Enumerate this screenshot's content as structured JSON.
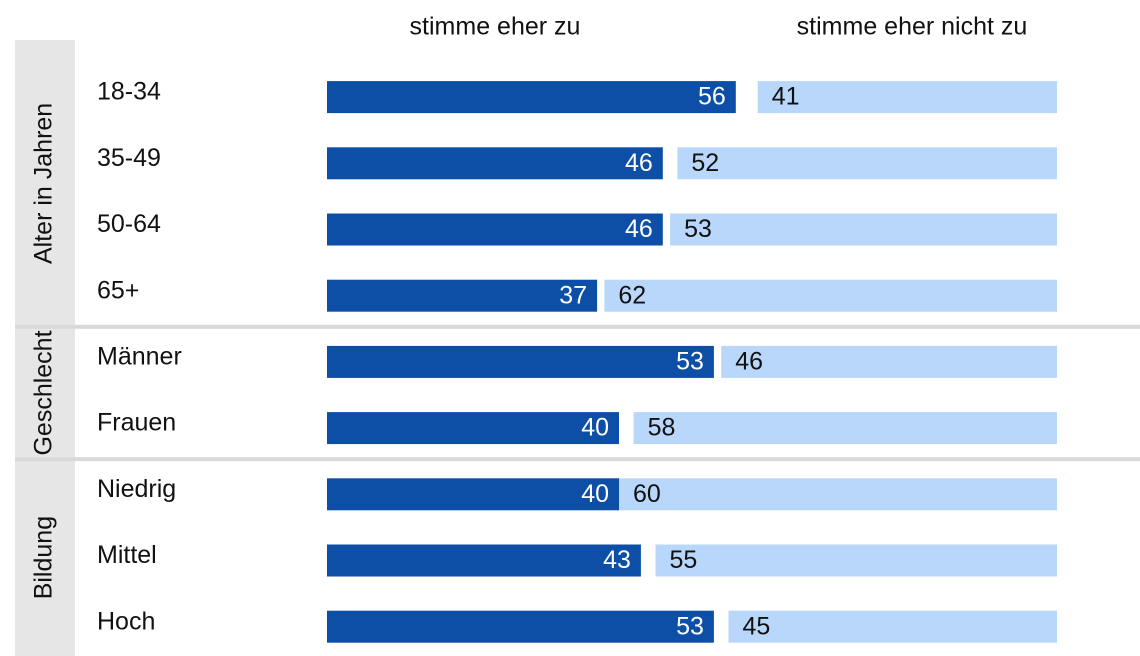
{
  "chart_data": {
    "type": "diverging-bar",
    "groups": [
      {
        "label": "Alter in Jahren",
        "categories": [
          "18-34",
          "35-49",
          "50-64",
          "65+"
        ]
      },
      {
        "label": "Geschlecht",
        "categories": [
          "Männer",
          "Frauen"
        ]
      },
      {
        "label": "Bildung",
        "categories": [
          "Niedrig",
          "Mittel",
          "Hoch"
        ]
      }
    ],
    "series": [
      {
        "name": "stimme eher zu",
        "color": "#0d4ea6",
        "values": [
          56,
          46,
          46,
          37,
          53,
          40,
          40,
          43,
          53
        ]
      },
      {
        "name": "stimme eher nicht zu",
        "color": "#b9d7fb",
        "values": [
          41,
          52,
          53,
          62,
          46,
          58,
          60,
          55,
          45
        ]
      }
    ],
    "xlim": [
      0,
      100
    ]
  }
}
